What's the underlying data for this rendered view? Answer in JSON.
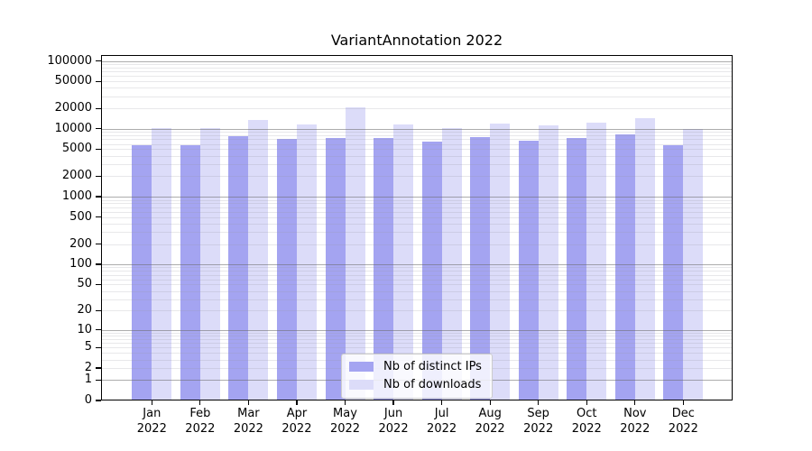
{
  "figure": {
    "title": "VariantAnnotation 2022"
  },
  "chart_data": {
    "type": "bar",
    "title": "VariantAnnotation 2022",
    "xlabel": "",
    "ylabel": "",
    "yscale": "log1p",
    "ylim": [
      0,
      122000
    ],
    "grid": "horizontal major (powers of 10) + faint minor (2-9 per decade)",
    "yticks": [
      0,
      1,
      2,
      5,
      10,
      20,
      50,
      100,
      200,
      500,
      1000,
      2000,
      5000,
      10000,
      20000,
      50000,
      100000
    ],
    "categories": [
      "Jan",
      "Feb",
      "Mar",
      "Apr",
      "May",
      "Jun",
      "Jul",
      "Aug",
      "Sep",
      "Oct",
      "Nov",
      "Dec"
    ],
    "year_label": "2022",
    "series": [
      {
        "name": "Nb of distinct IPs",
        "color": "#a4a4f1",
        "values": [
          5800,
          5750,
          7850,
          7100,
          7250,
          7400,
          6400,
          7600,
          6700,
          7400,
          8400,
          5700
        ]
      },
      {
        "name": "Nb of downloads",
        "color": "#dcdcf9",
        "values": [
          10100,
          10100,
          13400,
          11500,
          21000,
          11700,
          10300,
          12000,
          11400,
          12300,
          14300,
          10000
        ]
      }
    ],
    "legend": {
      "position": "lower center, inside plot",
      "entries": [
        "Nb of distinct IPs",
        "Nb of downloads"
      ]
    }
  }
}
